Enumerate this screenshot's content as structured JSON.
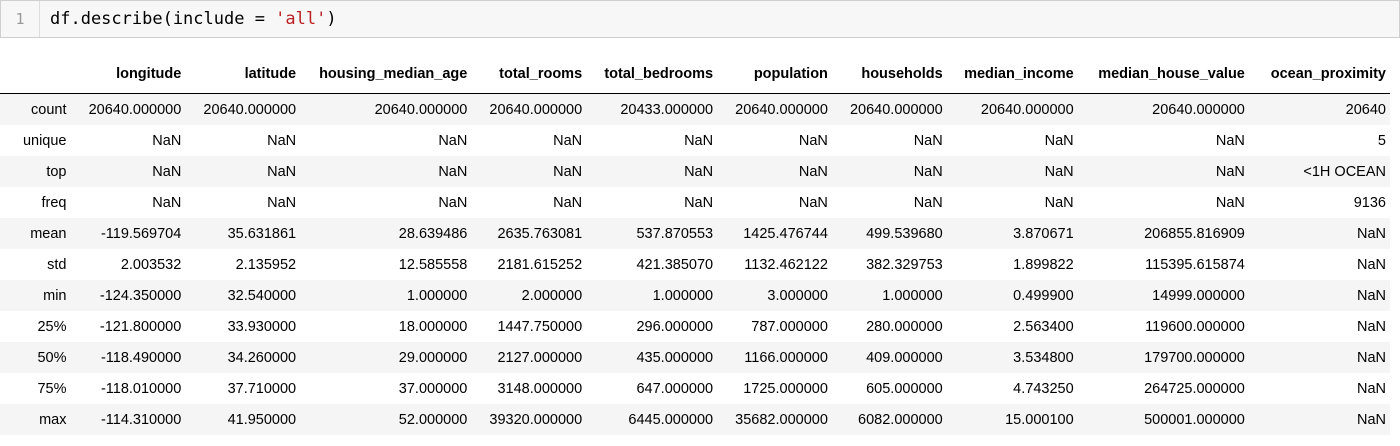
{
  "cell": {
    "line_number": "1",
    "code_prefix": "df.describe(include = ",
    "code_string": "'all'",
    "code_suffix": ")"
  },
  "table": {
    "columns": [
      "",
      "longitude",
      "latitude",
      "housing_median_age",
      "total_rooms",
      "total_bedrooms",
      "population",
      "households",
      "median_income",
      "median_house_value",
      "ocean_proximity"
    ],
    "rows": [
      [
        "count",
        "20640.000000",
        "20640.000000",
        "20640.000000",
        "20640.000000",
        "20433.000000",
        "20640.000000",
        "20640.000000",
        "20640.000000",
        "20640.000000",
        "20640"
      ],
      [
        "unique",
        "NaN",
        "NaN",
        "NaN",
        "NaN",
        "NaN",
        "NaN",
        "NaN",
        "NaN",
        "NaN",
        "5"
      ],
      [
        "top",
        "NaN",
        "NaN",
        "NaN",
        "NaN",
        "NaN",
        "NaN",
        "NaN",
        "NaN",
        "NaN",
        "<1H OCEAN"
      ],
      [
        "freq",
        "NaN",
        "NaN",
        "NaN",
        "NaN",
        "NaN",
        "NaN",
        "NaN",
        "NaN",
        "NaN",
        "9136"
      ],
      [
        "mean",
        "-119.569704",
        "35.631861",
        "28.639486",
        "2635.763081",
        "537.870553",
        "1425.476744",
        "499.539680",
        "3.870671",
        "206855.816909",
        "NaN"
      ],
      [
        "std",
        "2.003532",
        "2.135952",
        "12.585558",
        "2181.615252",
        "421.385070",
        "1132.462122",
        "382.329753",
        "1.899822",
        "115395.615874",
        "NaN"
      ],
      [
        "min",
        "-124.350000",
        "32.540000",
        "1.000000",
        "2.000000",
        "1.000000",
        "3.000000",
        "1.000000",
        "0.499900",
        "14999.000000",
        "NaN"
      ],
      [
        "25%",
        "-121.800000",
        "33.930000",
        "18.000000",
        "1447.750000",
        "296.000000",
        "787.000000",
        "280.000000",
        "2.563400",
        "119600.000000",
        "NaN"
      ],
      [
        "50%",
        "-118.490000",
        "34.260000",
        "29.000000",
        "2127.000000",
        "435.000000",
        "1166.000000",
        "409.000000",
        "3.534800",
        "179700.000000",
        "NaN"
      ],
      [
        "75%",
        "-118.010000",
        "37.710000",
        "37.000000",
        "3148.000000",
        "647.000000",
        "1725.000000",
        "605.000000",
        "4.743250",
        "264725.000000",
        "NaN"
      ],
      [
        "max",
        "-114.310000",
        "41.950000",
        "52.000000",
        "39320.000000",
        "6445.000000",
        "35682.000000",
        "6082.000000",
        "15.000100",
        "500001.000000",
        "NaN"
      ]
    ]
  }
}
